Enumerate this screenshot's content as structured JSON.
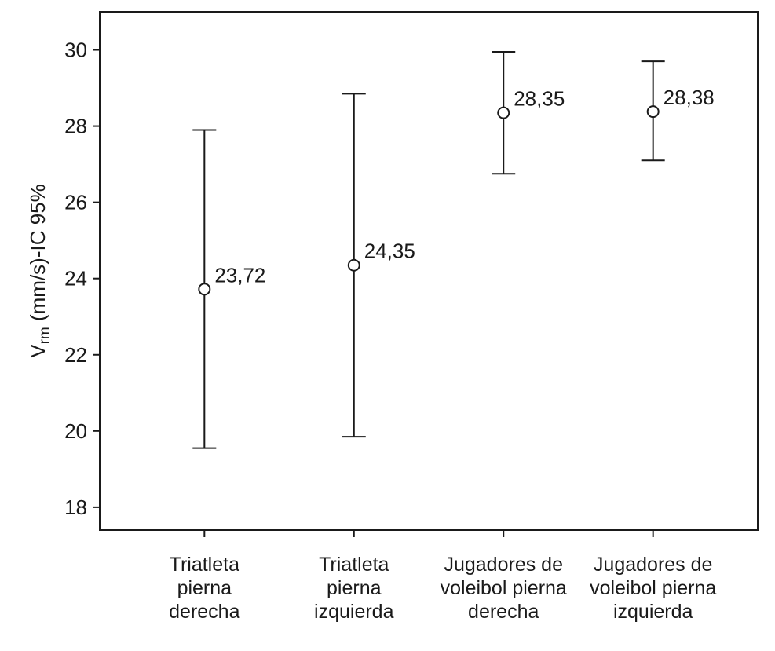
{
  "chart_data": {
    "type": "errorbar",
    "ylabel": {
      "main": "V",
      "subscript": "rm",
      "rest": " (mm/s)-IC 95%"
    },
    "xlabel": "",
    "ylim": [
      17.4,
      31
    ],
    "yticks": [
      18,
      20,
      22,
      24,
      26,
      28,
      30
    ],
    "grid": false,
    "categories": [
      [
        "Triatleta",
        "pierna",
        "derecha"
      ],
      [
        "Triatleta",
        "pierna",
        "izquierda"
      ],
      [
        "Jugadores de",
        "voleibol pierna",
        "derecha"
      ],
      [
        "Jugadores de",
        "voleibol pierna",
        "izquierda"
      ]
    ],
    "means": [
      23.72,
      24.35,
      28.35,
      28.38
    ],
    "mean_labels": [
      "23,72",
      "24,35",
      "28,35",
      "28,38"
    ],
    "lower": [
      19.55,
      19.85,
      26.75,
      27.1
    ],
    "upper": [
      27.9,
      28.85,
      29.95,
      29.7
    ]
  }
}
